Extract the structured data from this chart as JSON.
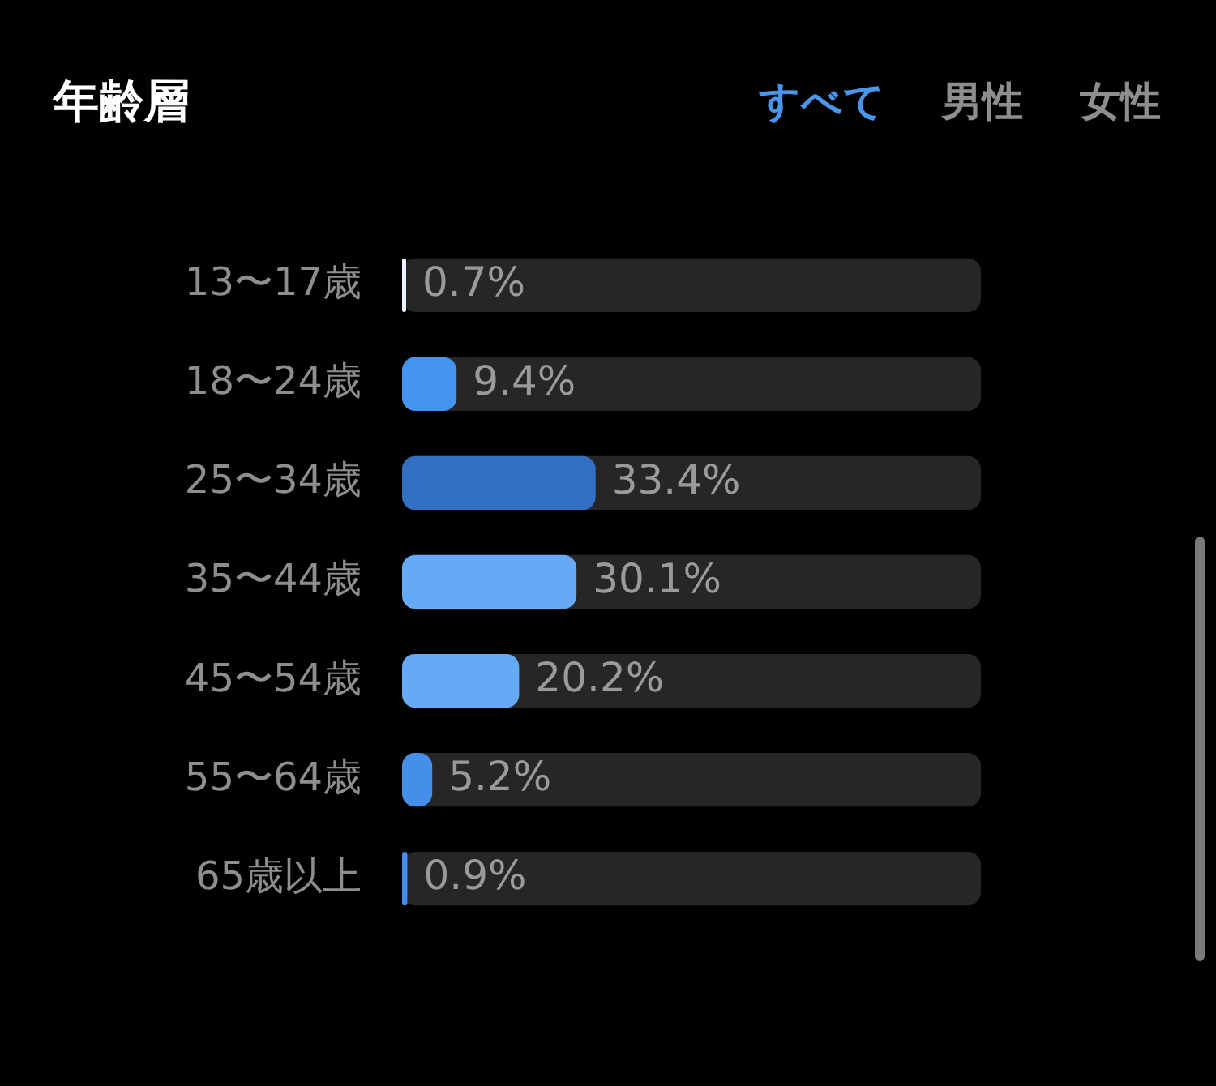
{
  "chart_data": {
    "type": "bar",
    "orientation": "horizontal",
    "title": "年齢層",
    "annotations": [
      "すべて",
      "男性",
      "女性"
    ],
    "categories": [
      "13〜17歳",
      "18〜24歳",
      "25〜34歳",
      "35〜44歳",
      "45〜54歳",
      "55〜64歳",
      "65歳以上"
    ],
    "values": [
      0.7,
      9.4,
      33.4,
      30.1,
      20.2,
      5.2,
      0.9
    ],
    "colors": [
      "#eaf3ff",
      "#4394ee",
      "#3370c4",
      "#64aaf7",
      "#64aaf7",
      "#448fe9",
      "#448fe9"
    ],
    "value_labels": [
      "0.7%",
      "9.4%",
      "33.4%",
      "30.1%",
      "20.2%",
      "5.2%",
      "0.9%"
    ],
    "tick_labels": "y"
  }
}
